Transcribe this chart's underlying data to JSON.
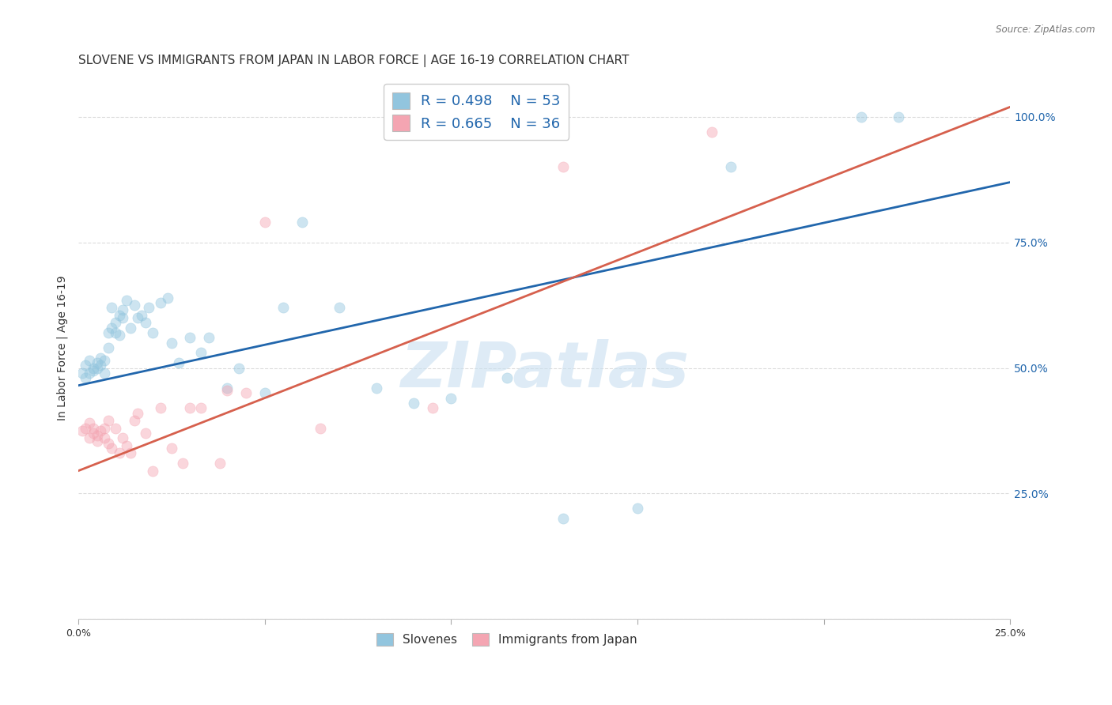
{
  "title": "SLOVENE VS IMMIGRANTS FROM JAPAN IN LABOR FORCE | AGE 16-19 CORRELATION CHART",
  "source": "Source: ZipAtlas.com",
  "ylabel": "In Labor Force | Age 16-19",
  "xlim": [
    0.0,
    0.25
  ],
  "ylim": [
    0.0,
    1.08
  ],
  "xticks": [
    0.0,
    0.05,
    0.1,
    0.15,
    0.2,
    0.25
  ],
  "xticklabels": [
    "0.0%",
    "",
    "",
    "",
    "",
    "25.0%"
  ],
  "ytick_positions": [
    0.0,
    0.25,
    0.5,
    0.75,
    1.0
  ],
  "yticklabels_right": [
    "",
    "25.0%",
    "50.0%",
    "75.0%",
    "100.0%"
  ],
  "legend_bottom": [
    "Slovenes",
    "Immigrants from Japan"
  ],
  "blue_color": "#92c5de",
  "pink_color": "#f4a5b2",
  "blue_line_color": "#2166ac",
  "pink_line_color": "#d6604d",
  "watermark": "ZIPatlas",
  "background_color": "#ffffff",
  "grid_color": "#cccccc",
  "title_fontsize": 11,
  "axis_label_fontsize": 10,
  "tick_fontsize": 9,
  "scatter_size": 90,
  "scatter_alpha": 0.45,
  "blue_line_x": [
    0.0,
    0.25
  ],
  "blue_line_y": [
    0.465,
    0.87
  ],
  "pink_line_x": [
    0.0,
    0.25
  ],
  "pink_line_y": [
    0.295,
    1.02
  ],
  "blue_scatter_x": [
    0.001,
    0.002,
    0.002,
    0.003,
    0.003,
    0.004,
    0.004,
    0.005,
    0.005,
    0.006,
    0.006,
    0.007,
    0.007,
    0.008,
    0.008,
    0.009,
    0.009,
    0.01,
    0.01,
    0.011,
    0.011,
    0.012,
    0.012,
    0.013,
    0.014,
    0.015,
    0.016,
    0.017,
    0.018,
    0.019,
    0.02,
    0.022,
    0.024,
    0.025,
    0.027,
    0.03,
    0.033,
    0.035,
    0.04,
    0.043,
    0.05,
    0.055,
    0.06,
    0.07,
    0.08,
    0.09,
    0.1,
    0.115,
    0.13,
    0.15,
    0.175,
    0.21,
    0.22
  ],
  "blue_scatter_y": [
    0.49,
    0.505,
    0.48,
    0.515,
    0.49,
    0.5,
    0.495,
    0.51,
    0.5,
    0.52,
    0.505,
    0.515,
    0.49,
    0.54,
    0.57,
    0.62,
    0.58,
    0.57,
    0.59,
    0.605,
    0.565,
    0.6,
    0.615,
    0.635,
    0.58,
    0.625,
    0.6,
    0.605,
    0.59,
    0.62,
    0.57,
    0.63,
    0.64,
    0.55,
    0.51,
    0.56,
    0.53,
    0.56,
    0.46,
    0.5,
    0.45,
    0.62,
    0.79,
    0.62,
    0.46,
    0.43,
    0.44,
    0.48,
    0.2,
    0.22,
    0.9,
    1.0,
    1.0
  ],
  "pink_scatter_x": [
    0.001,
    0.002,
    0.003,
    0.003,
    0.004,
    0.004,
    0.005,
    0.005,
    0.006,
    0.007,
    0.007,
    0.008,
    0.008,
    0.009,
    0.01,
    0.011,
    0.012,
    0.013,
    0.014,
    0.015,
    0.016,
    0.018,
    0.02,
    0.022,
    0.025,
    0.028,
    0.03,
    0.033,
    0.038,
    0.04,
    0.045,
    0.05,
    0.065,
    0.095,
    0.13,
    0.17
  ],
  "pink_scatter_y": [
    0.375,
    0.38,
    0.36,
    0.39,
    0.37,
    0.38,
    0.355,
    0.365,
    0.375,
    0.36,
    0.38,
    0.35,
    0.395,
    0.34,
    0.38,
    0.33,
    0.36,
    0.345,
    0.33,
    0.395,
    0.41,
    0.37,
    0.295,
    0.42,
    0.34,
    0.31,
    0.42,
    0.42,
    0.31,
    0.455,
    0.45,
    0.79,
    0.38,
    0.42,
    0.9,
    0.97
  ]
}
